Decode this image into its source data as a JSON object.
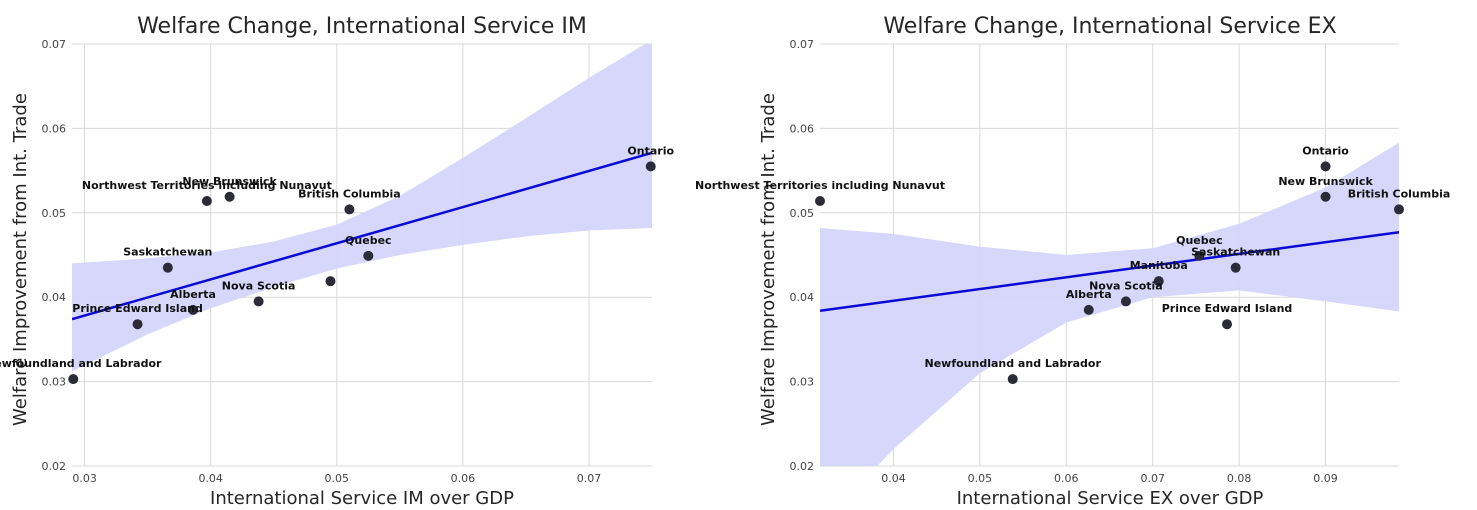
{
  "chart_data": [
    {
      "type": "scatter",
      "title": "Welfare Change, International Service IM",
      "xlabel": "International Service IM over GDP",
      "ylabel": "Welfare Improvement from Int. Trade",
      "xlim": [
        0.029,
        0.075
      ],
      "ylim": [
        0.02,
        0.07
      ],
      "xticks": [
        "0.03",
        "0.04",
        "0.05",
        "0.06",
        "0.07"
      ],
      "yticks": [
        "0.02",
        "0.03",
        "0.04",
        "0.05",
        "0.06",
        "0.07"
      ],
      "grid": true,
      "colors": {
        "points": "#2b2b3a",
        "fit_line": "#0a0ad6",
        "confidence_band": "#d5d5fb"
      },
      "points": [
        {
          "label": "Ontario",
          "x": 0.0749,
          "y": 0.0555
        },
        {
          "label": "New Brunswick",
          "x": 0.0415,
          "y": 0.0519
        },
        {
          "label": "Northwest Territories including Nunavut",
          "x": 0.0397,
          "y": 0.0514
        },
        {
          "label": "British Columbia",
          "x": 0.051,
          "y": 0.0504
        },
        {
          "label": "Saskatchewan",
          "x": 0.0366,
          "y": 0.0435
        },
        {
          "label": "Quebec",
          "x": 0.0525,
          "y": 0.0449
        },
        {
          "label": "",
          "x": 0.0495,
          "y": 0.0419
        },
        {
          "label": "Nova Scotia",
          "x": 0.0438,
          "y": 0.0395
        },
        {
          "label": "Alberta",
          "x": 0.0386,
          "y": 0.0385
        },
        {
          "label": "Prince Edward Island",
          "x": 0.0342,
          "y": 0.0368
        },
        {
          "label": "Newfoundland and Labrador",
          "x": 0.0291,
          "y": 0.0303
        }
      ],
      "regression": {
        "x": [
          0.029,
          0.075
        ],
        "y": [
          0.0374,
          0.0571
        ]
      },
      "confidence_band": {
        "x": [
          0.029,
          0.035,
          0.04,
          0.045,
          0.05,
          0.055,
          0.06,
          0.065,
          0.07,
          0.075
        ],
        "lower": [
          0.0312,
          0.0356,
          0.0387,
          0.0412,
          0.0434,
          0.045,
          0.0462,
          0.0472,
          0.0479,
          0.0482
        ],
        "upper": [
          0.044,
          0.0446,
          0.0453,
          0.0466,
          0.0486,
          0.052,
          0.0565,
          0.0612,
          0.066,
          0.0705
        ]
      }
    },
    {
      "type": "scatter",
      "title": "Welfare Change, International Service EX",
      "xlabel": "International Service EX over GDP",
      "ylabel": "Welfare Improvement from Int. Trade",
      "xlim": [
        0.0315,
        0.0985
      ],
      "ylim": [
        0.02,
        0.07
      ],
      "xticks": [
        "0.04",
        "0.05",
        "0.06",
        "0.07",
        "0.08",
        "0.09"
      ],
      "yticks": [
        "0.02",
        "0.03",
        "0.04",
        "0.05",
        "0.06",
        "0.07"
      ],
      "grid": true,
      "colors": {
        "points": "#2b2b3a",
        "fit_line": "#0a0ad6",
        "confidence_band": "#d5d5fb"
      },
      "points": [
        {
          "label": "Ontario",
          "x": 0.09,
          "y": 0.0555
        },
        {
          "label": "New Brunswick",
          "x": 0.09,
          "y": 0.0519
        },
        {
          "label": "British Columbia",
          "x": 0.0985,
          "y": 0.0504
        },
        {
          "label": "Northwest Territories including Nunavut",
          "x": 0.0315,
          "y": 0.0514
        },
        {
          "label": "Quebec",
          "x": 0.0754,
          "y": 0.0449
        },
        {
          "label": "Saskatchewan",
          "x": 0.0796,
          "y": 0.0435
        },
        {
          "label": "Manitoba",
          "x": 0.0707,
          "y": 0.0419
        },
        {
          "label": "Nova Scotia",
          "x": 0.0669,
          "y": 0.0395
        },
        {
          "label": "Alberta",
          "x": 0.0626,
          "y": 0.0385
        },
        {
          "label": "Prince Edward Island",
          "x": 0.0786,
          "y": 0.0368
        },
        {
          "label": "Newfoundland and Labrador",
          "x": 0.0538,
          "y": 0.0303
        }
      ],
      "regression": {
        "x": [
          0.0315,
          0.0985
        ],
        "y": [
          0.0384,
          0.0477
        ]
      },
      "confidence_band": {
        "x": [
          0.0315,
          0.04,
          0.05,
          0.06,
          0.07,
          0.08,
          0.09,
          0.0985
        ],
        "lower": [
          0.013,
          0.022,
          0.031,
          0.037,
          0.04,
          0.0408,
          0.0395,
          0.0383
        ],
        "upper": [
          0.0482,
          0.0475,
          0.046,
          0.045,
          0.0458,
          0.0487,
          0.053,
          0.0583
        ]
      }
    }
  ]
}
